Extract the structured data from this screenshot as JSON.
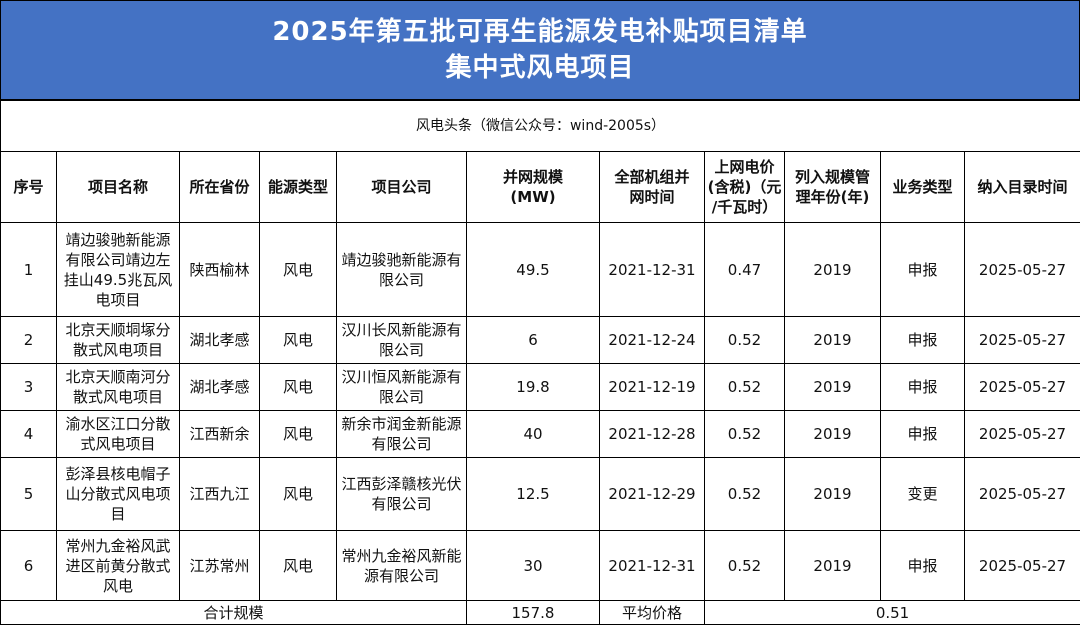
{
  "title": {
    "line1": "2025年第五批可再生能源发电补贴项目清单",
    "line2": "集中式风电项目"
  },
  "source": "风电头条（微信公众号：wind-2005s）",
  "columns": [
    "序号",
    "项目名称",
    "所在省份",
    "能源类型",
    "项目公司",
    "并网规模\n(MW)",
    "全部机组并\n网时间",
    "上网电价\n(含税)（元\n/千瓦时）",
    "列入规模管\n理年份(年)",
    "业务类型",
    "纳入目录时间"
  ],
  "rows": [
    {
      "no": "1",
      "name": "靖边骏驰新能源有限公司靖边左挂山49.5兆瓦风电项目",
      "province": "陕西榆林",
      "energy": "风电",
      "company": "靖边骏驰新能源有限公司",
      "capacity": "49.5",
      "grid_time": "2021-12-31",
      "price": "0.47",
      "year": "2019",
      "biz": "申报",
      "date": "2025-05-27"
    },
    {
      "no": "2",
      "name": "北京天顺垌塚分散式风电项目",
      "province": "湖北孝感",
      "energy": "风电",
      "company": "汉川长风新能源有限公司",
      "capacity": "6",
      "grid_time": "2021-12-24",
      "price": "0.52",
      "year": "2019",
      "biz": "申报",
      "date": "2025-05-27"
    },
    {
      "no": "3",
      "name": "北京天顺南河分散式风电项目",
      "province": "湖北孝感",
      "energy": "风电",
      "company": "汉川恒风新能源有限公司",
      "capacity": "19.8",
      "grid_time": "2021-12-19",
      "price": "0.52",
      "year": "2019",
      "biz": "申报",
      "date": "2025-05-27"
    },
    {
      "no": "4",
      "name": "渝水区江口分散式风电项目",
      "province": "江西新余",
      "energy": "风电",
      "company": "新余市润金新能源有限公司",
      "capacity": "40",
      "grid_time": "2021-12-28",
      "price": "0.52",
      "year": "2019",
      "biz": "申报",
      "date": "2025-05-27"
    },
    {
      "no": "5",
      "name": "彭泽县核电帽子山分散式风电项目",
      "province": "江西九江",
      "energy": "风电",
      "company": "江西彭泽赣核光伏有限公司",
      "capacity": "12.5",
      "grid_time": "2021-12-29",
      "price": "0.52",
      "year": "2019",
      "biz": "变更",
      "date": "2025-05-27"
    },
    {
      "no": "6",
      "name": "常州九金裕风武进区前黄分散式风电",
      "province": "江苏常州",
      "energy": "风电",
      "company": "常州九金裕风新能源有限公司",
      "capacity": "30",
      "grid_time": "2021-12-31",
      "price": "0.52",
      "year": "2019",
      "biz": "申报",
      "date": "2025-05-27"
    }
  ],
  "total": {
    "label": "合计规模",
    "capacity": "157.8",
    "avg_label": "平均价格",
    "avg_price": "0.51"
  }
}
